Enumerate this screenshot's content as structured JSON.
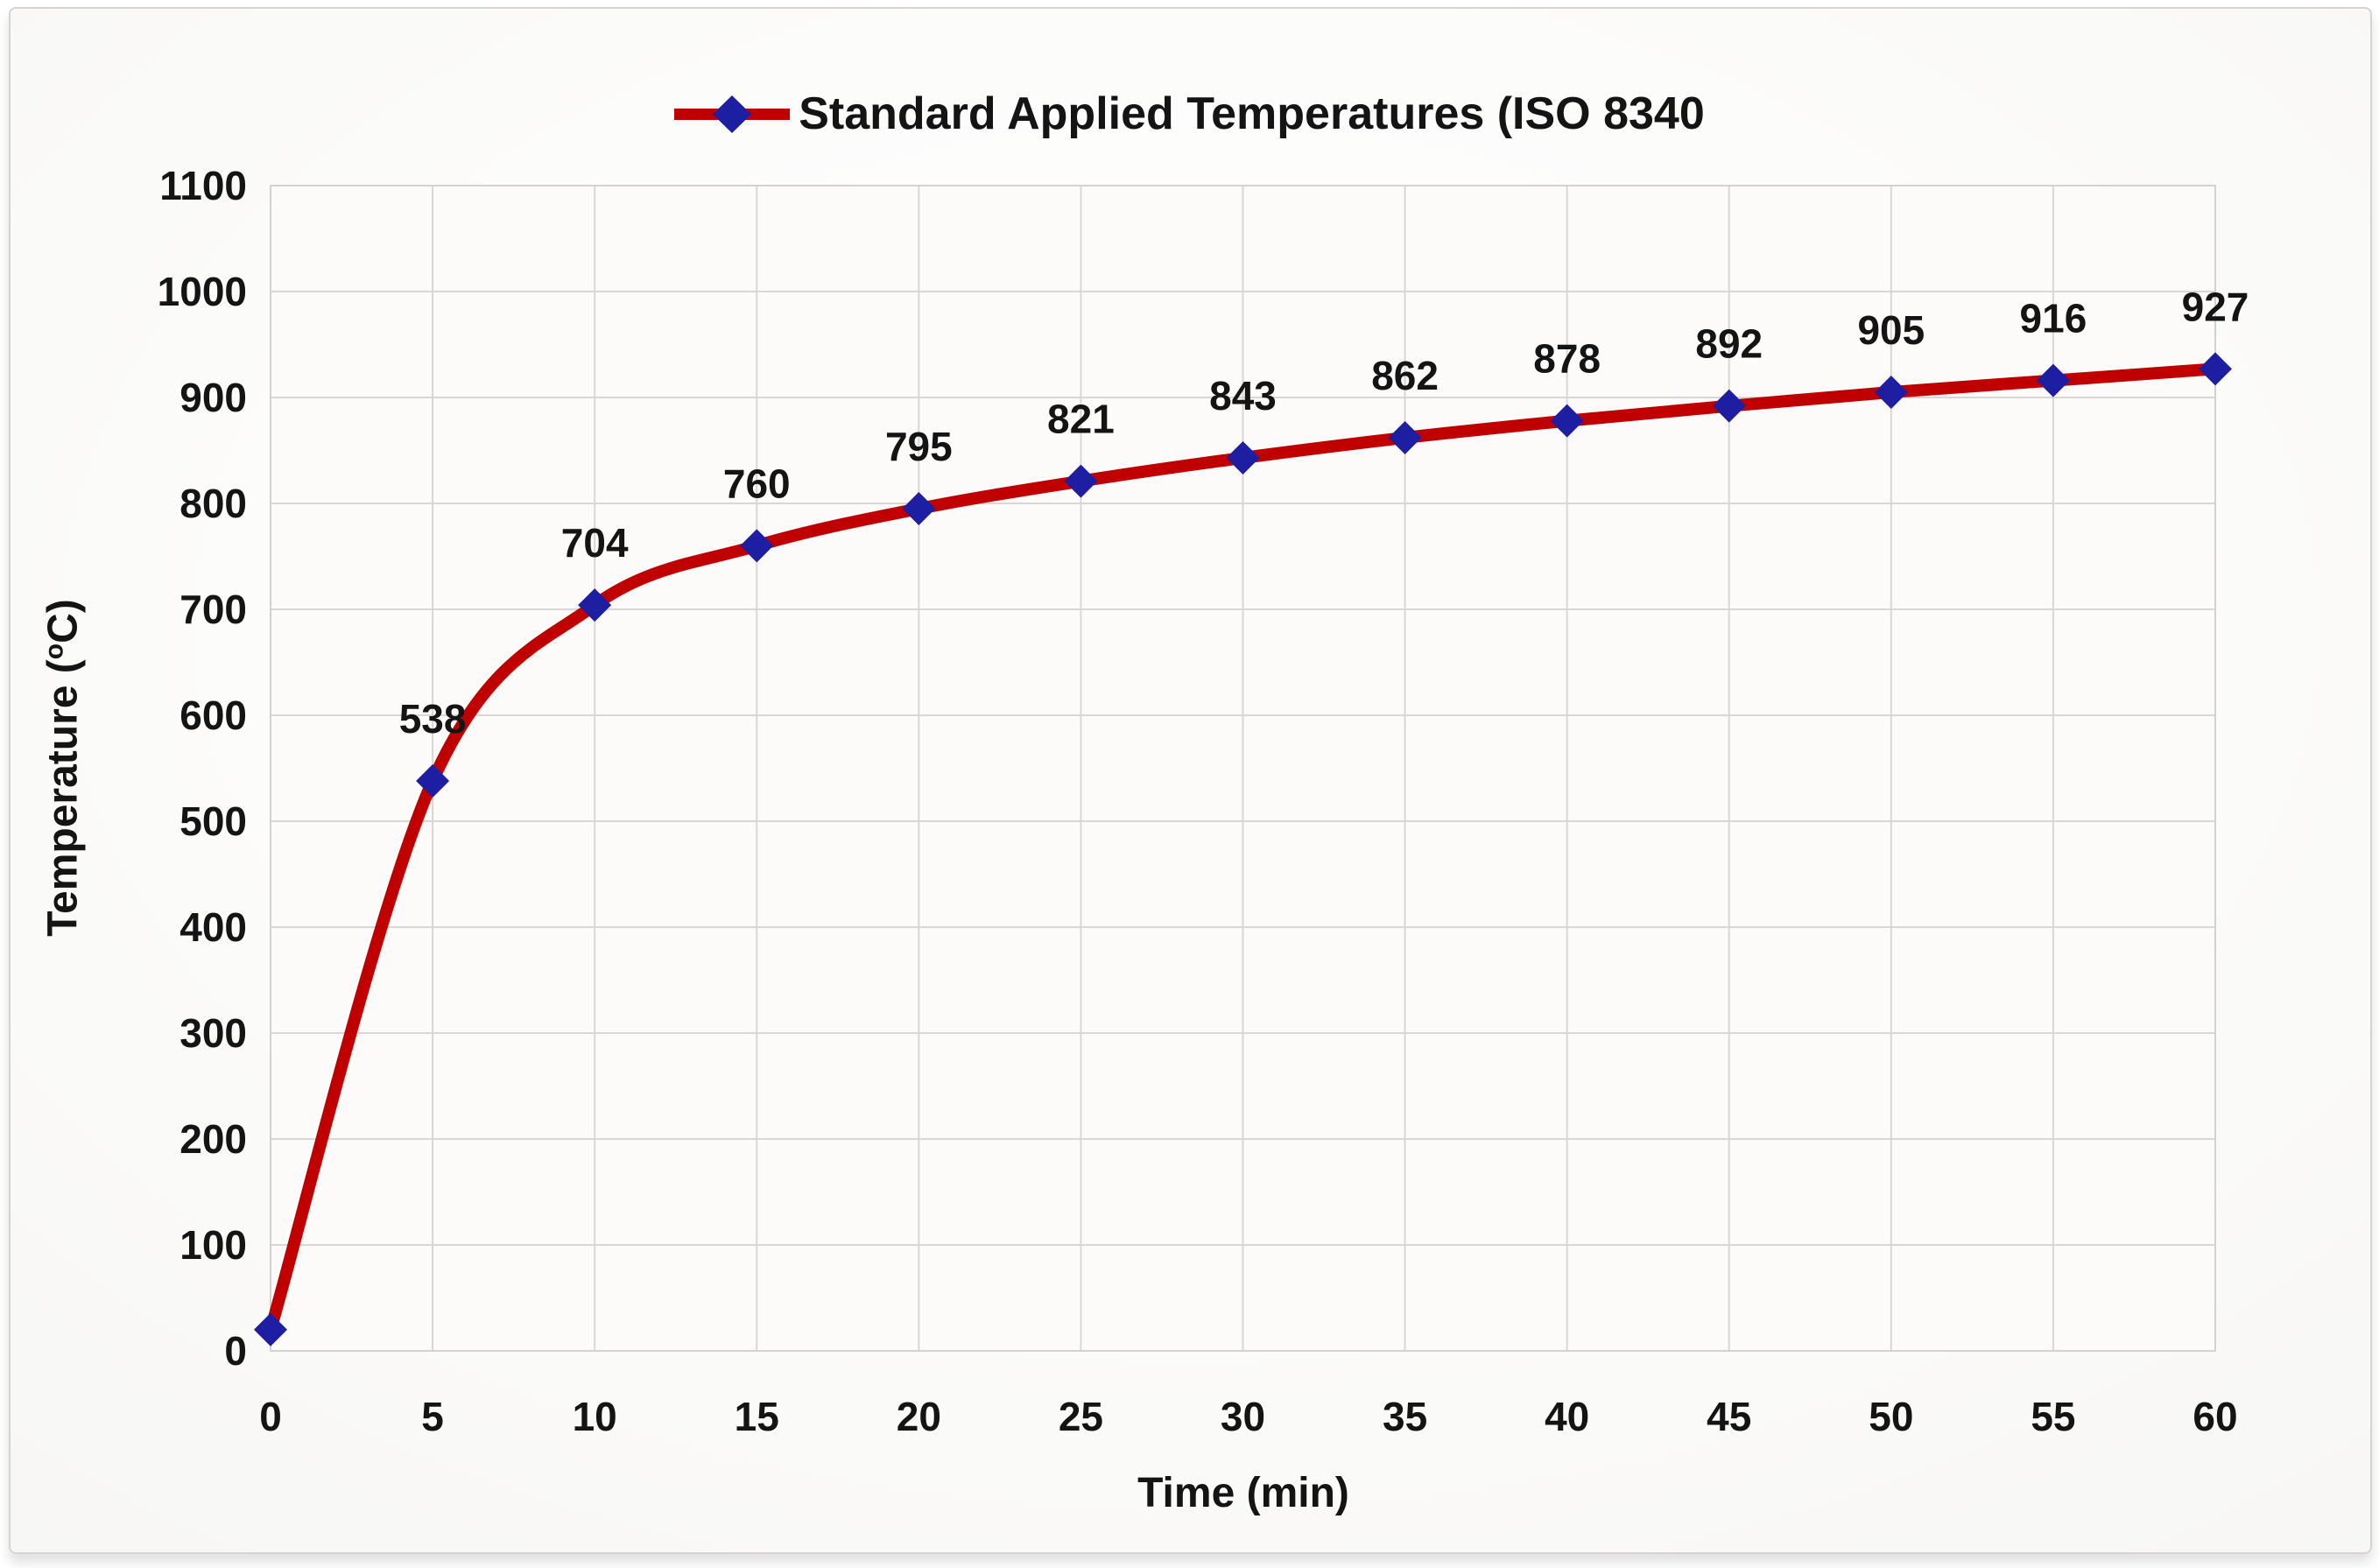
{
  "legend": {
    "label": "Standard Applied Temperatures (ISO 8340"
  },
  "axes": {
    "xlabel": "Time (min)",
    "ylabel_prefix": "Temperature (",
    "ylabel_sup": "o",
    "ylabel_suffix": "C)"
  },
  "chart_data": {
    "type": "line",
    "title": "",
    "legend_label": "Standard Applied Temperatures (ISO 8340",
    "xlabel": "Time (min)",
    "ylabel": "Temperature (oC)",
    "x": [
      0,
      5,
      10,
      15,
      20,
      25,
      30,
      35,
      40,
      45,
      50,
      55,
      60
    ],
    "series": [
      {
        "name": "Standard Applied Temperatures (ISO 8340",
        "values": [
          20,
          538,
          704,
          760,
          795,
          821,
          843,
          862,
          878,
          892,
          905,
          916,
          927
        ]
      }
    ],
    "point_labels": [
      "",
      "538",
      "704",
      "760",
      "795",
      "821",
      "843",
      "862",
      "878",
      "892",
      "905",
      "916",
      "927"
    ],
    "x_ticks": [
      0,
      5,
      10,
      15,
      20,
      25,
      30,
      35,
      40,
      45,
      50,
      55,
      60
    ],
    "x_tick_labels": [
      "0",
      "5",
      "10",
      "15",
      "20",
      "25",
      "30",
      "35",
      "40",
      "45",
      "50",
      "55",
      "60"
    ],
    "y_ticks": [
      0,
      100,
      200,
      300,
      400,
      500,
      600,
      700,
      800,
      900,
      1000,
      1100
    ],
    "y_tick_labels": [
      "0",
      "100",
      "200",
      "300",
      "400",
      "500",
      "600",
      "700",
      "800",
      "900",
      "1000",
      "1100"
    ],
    "xlim": [
      0,
      60
    ],
    "ylim": [
      0,
      1100
    ],
    "grid": true,
    "smooth_line": true,
    "legend_position": "top-center",
    "colors": {
      "line": "#C00000",
      "marker": "#1E1EA3",
      "data_label": "#141414",
      "tick_label": "#141414",
      "grid": "#d9d7d4",
      "plot_fill": "#fcfbfa",
      "plot_border": "#d4d2cf"
    }
  }
}
